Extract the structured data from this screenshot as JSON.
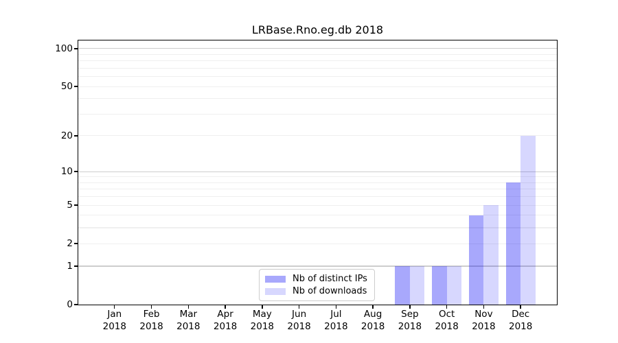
{
  "title": "LRBase.Rno.eg.db 2018",
  "chart_data": {
    "type": "bar",
    "title": "LRBase.Rno.eg.db 2018",
    "categories": [
      "Jan",
      "Feb",
      "Mar",
      "Apr",
      "May",
      "Jun",
      "Jul",
      "Aug",
      "Sep",
      "Oct",
      "Nov",
      "Dec"
    ],
    "category_year": "2018",
    "series": [
      {
        "name": "Nb of distinct IPs",
        "color": "rgba(2,2,247,0.345)",
        "color_on_white": "#a8a8fa",
        "values": [
          0,
          0,
          0,
          0,
          0,
          0,
          0,
          0,
          1,
          1,
          4,
          8
        ]
      },
      {
        "name": "Nb of downloads",
        "color": "rgba(2,2,247,0.155)",
        "color_on_white": "#d8d8fa",
        "values": [
          0,
          0,
          0,
          0,
          0,
          0,
          0,
          0,
          1,
          1,
          5,
          20
        ]
      }
    ],
    "xlabel": "",
    "ylabel": "",
    "yscale": "log1p",
    "yticks": [
      0,
      1,
      2,
      5,
      10,
      20,
      50,
      100
    ],
    "ylim": [
      0,
      116
    ],
    "grid": "both",
    "grid_major_at": [
      1,
      10,
      100
    ],
    "grid_minor_at": [
      2,
      3,
      4,
      5,
      6,
      7,
      8,
      9,
      20,
      30,
      40,
      50,
      60,
      70,
      80,
      90
    ],
    "legend_position": "bottom-center",
    "background_color": "#ffffff",
    "gridline_major_color": "#cdcdcd",
    "gridline_minor_color": "#efefef"
  }
}
